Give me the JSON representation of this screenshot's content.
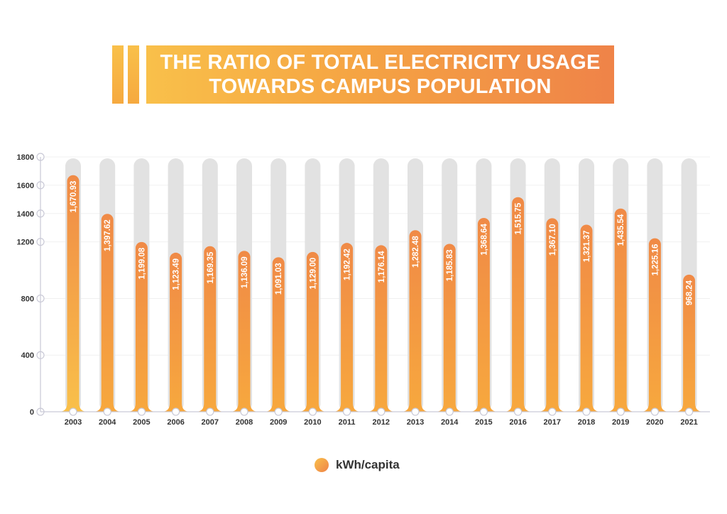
{
  "chart_data": {
    "type": "bar",
    "title_lines": [
      "THE RATIO OF TOTAL ELECTRICITY USAGE",
      "TOWARDS CAMPUS POPULATION"
    ],
    "categories": [
      "2003",
      "2004",
      "2005",
      "2006",
      "2007",
      "2008",
      "2009",
      "2010",
      "2011",
      "2012",
      "2013",
      "2014",
      "2015",
      "2016",
      "2017",
      "2018",
      "2019",
      "2020",
      "2021"
    ],
    "series": [
      {
        "name": "kWh/capita",
        "values": [
          1670.93,
          1397.62,
          1199.08,
          1123.49,
          1169.35,
          1136.09,
          1091.03,
          1129.0,
          1192.42,
          1176.14,
          1282.48,
          1185.83,
          1368.64,
          1515.75,
          1367.1,
          1321.37,
          1435.54,
          1225.16,
          968.24
        ],
        "labels": [
          "1,670.93",
          "1,397.62",
          "1,199.08",
          "1,123.49",
          "1,169.35",
          "1,136.09",
          "1,091.03",
          "1,129.00",
          "1,192.42",
          "1,176.14",
          "1,282.48",
          "1,185.83",
          "1,368.64",
          "1,515.75",
          "1,367.10",
          "1,321.37",
          "1,435.54",
          "1,225.16",
          "968.24"
        ]
      }
    ],
    "ylim": [
      0,
      1800
    ],
    "yticks": [
      0,
      400,
      800,
      1200,
      1400,
      1600,
      1800
    ],
    "grid": true,
    "legend_position": "bottom-center",
    "colors": {
      "bar_top": "#f08a46",
      "bar_bottom": "#f7a83e",
      "bar_first_bottom": "#f9c04a",
      "track": "#e2e2e2",
      "axis": "#c9c9d6"
    }
  }
}
